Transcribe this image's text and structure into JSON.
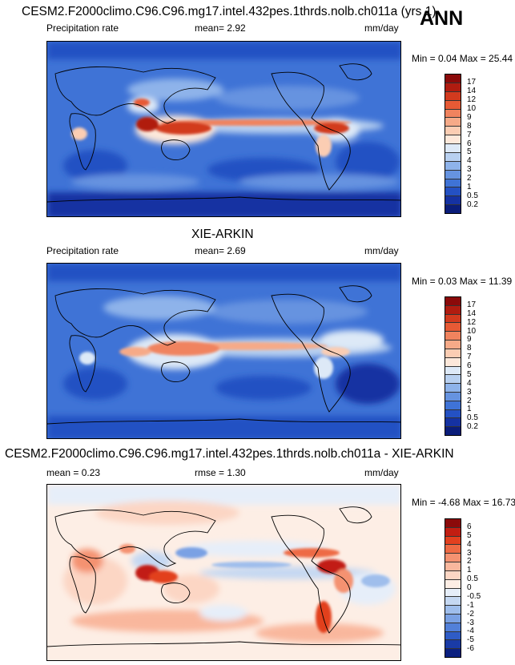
{
  "season": "ANN",
  "panel1": {
    "title": "CESM2.F2000climo.C96.C96.mg17.intel.432pes.1thrds.nolb.ch011a (yrs 1)",
    "variable": "Precipitation rate",
    "mean_text": "mean=   2.92",
    "units": "mm/day",
    "minmax": "Min =   0.04 Max =  25.44",
    "levels": [
      "17",
      "14",
      "12",
      "10",
      "9",
      "8",
      "7",
      "6",
      "5",
      "4",
      "3",
      "2",
      "1",
      "0.5",
      "0.2"
    ],
    "colors": [
      "#8b0a0a",
      "#b01c10",
      "#d23a1e",
      "#e75a35",
      "#f0835e",
      "#f6aa88",
      "#fbcdb3",
      "#fde8da",
      "#dde9f7",
      "#b8d0f0",
      "#8eb3ea",
      "#6693e0",
      "#3f73d6",
      "#2451c3",
      "#1532a2",
      "#0a1d7a"
    ]
  },
  "panel2": {
    "title": "XIE-ARKIN",
    "variable": "Precipitation rate",
    "mean_text": "mean=   2.69",
    "units": "mm/day",
    "minmax": "Min =   0.03 Max =  11.39",
    "levels": [
      "17",
      "14",
      "12",
      "10",
      "9",
      "8",
      "7",
      "6",
      "5",
      "4",
      "3",
      "2",
      "1",
      "0.5",
      "0.2"
    ],
    "colors": [
      "#8b0a0a",
      "#b01c10",
      "#d23a1e",
      "#e75a35",
      "#f0835e",
      "#f6aa88",
      "#fbcdb3",
      "#fde8da",
      "#dde9f7",
      "#b8d0f0",
      "#8eb3ea",
      "#6693e0",
      "#3f73d6",
      "#2451c3",
      "#1532a2",
      "#0a1d7a"
    ]
  },
  "panel3": {
    "title": "CESM2.F2000climo.C96.C96.mg17.intel.432pes.1thrds.nolb.ch011a - XIE-ARKIN",
    "mean_text": "mean =   0.23",
    "rmse_text": "rmse =   1.30",
    "units": "mm/day",
    "minmax": "Min =  -4.68 Max =  16.73",
    "levels": [
      "6",
      "5",
      "4",
      "3",
      "2",
      "1",
      "0.5",
      "0",
      "-0.5",
      "-1",
      "-2",
      "-3",
      "-4",
      "-5",
      "-6"
    ],
    "colors": [
      "#8b0a0a",
      "#c21e12",
      "#e2401f",
      "#ee6a44",
      "#f49271",
      "#f9b79d",
      "#fcd6c4",
      "#fdeee5",
      "#e6eef9",
      "#c5d8f2",
      "#9fbeec",
      "#7aa1e4",
      "#5280d9",
      "#2f5cc6",
      "#1a3ba6",
      "#0b2080"
    ]
  }
}
